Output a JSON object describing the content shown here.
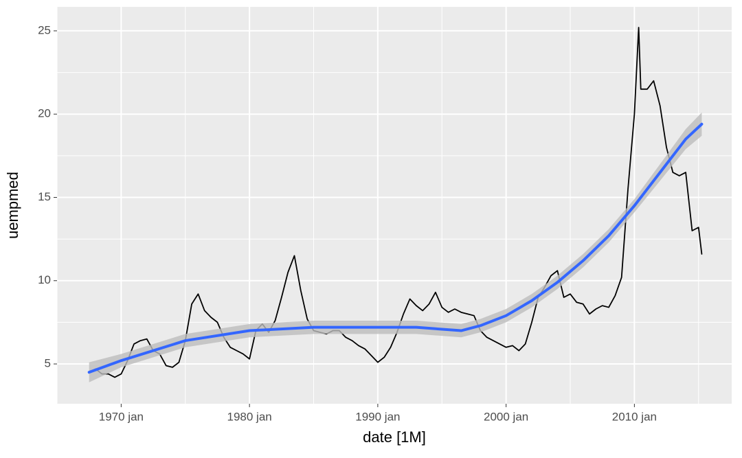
{
  "chart_data": {
    "type": "line",
    "x_label": "date [1M]",
    "y_label": "uempmed",
    "xlim": [
      "1965-01",
      "2017-08"
    ],
    "ylim": [
      2.61,
      26.44
    ],
    "xticks": [
      {
        "value": "1970-01",
        "label": "1970 jan"
      },
      {
        "value": "1980-01",
        "label": "1980 jan"
      },
      {
        "value": "1990-01",
        "label": "1990 jan"
      },
      {
        "value": "2000-01",
        "label": "2000 jan"
      },
      {
        "value": "2010-01",
        "label": "2010 jan"
      }
    ],
    "x_minor_ticks": [
      "1965-01",
      "1975-01",
      "1985-01",
      "1995-01",
      "2005-01",
      "2015-01"
    ],
    "yticks": [
      5,
      10,
      15,
      20,
      25
    ],
    "y_minor_ticks": [
      7.5,
      12.5,
      17.5,
      22.5
    ],
    "grid": true,
    "series": [
      {
        "color": "#000000",
        "x": [
          "1967-07",
          "1968-01",
          "1968-07",
          "1969-01",
          "1969-07",
          "1970-01",
          "1970-07",
          "1971-01",
          "1971-07",
          "1972-01",
          "1972-07",
          "1973-01",
          "1973-07",
          "1974-01",
          "1974-07",
          "1975-01",
          "1975-07",
          "1976-01",
          "1976-07",
          "1977-01",
          "1977-07",
          "1978-01",
          "1978-07",
          "1979-01",
          "1979-07",
          "1980-01",
          "1980-07",
          "1981-01",
          "1981-07",
          "1982-01",
          "1982-07",
          "1983-01",
          "1983-07",
          "1984-01",
          "1984-07",
          "1985-01",
          "1985-07",
          "1986-01",
          "1986-07",
          "1987-01",
          "1987-07",
          "1988-01",
          "1988-07",
          "1989-01",
          "1989-07",
          "1990-01",
          "1990-07",
          "1991-01",
          "1991-07",
          "1992-01",
          "1992-07",
          "1993-01",
          "1993-07",
          "1994-01",
          "1994-07",
          "1995-01",
          "1995-07",
          "1996-01",
          "1996-07",
          "1997-01",
          "1997-07",
          "1998-01",
          "1998-07",
          "1999-01",
          "1999-07",
          "2000-01",
          "2000-07",
          "2001-01",
          "2001-07",
          "2002-01",
          "2002-07",
          "2003-01",
          "2003-07",
          "2004-01",
          "2004-07",
          "2005-01",
          "2005-07",
          "2006-01",
          "2006-07",
          "2007-01",
          "2007-07",
          "2008-01",
          "2008-07",
          "2009-01",
          "2009-07",
          "2010-01",
          "2010-05",
          "2010-07",
          "2011-01",
          "2011-07",
          "2012-01",
          "2012-07",
          "2013-01",
          "2013-07",
          "2014-01",
          "2014-07",
          "2015-01",
          "2015-04"
        ],
        "values": [
          4.5,
          4.7,
          4.4,
          4.4,
          4.2,
          4.4,
          5.2,
          6.2,
          6.4,
          6.5,
          5.8,
          5.6,
          4.9,
          4.8,
          5.1,
          6.4,
          8.6,
          9.2,
          8.2,
          7.8,
          7.5,
          6.6,
          6.0,
          5.8,
          5.6,
          5.3,
          7.0,
          7.4,
          6.9,
          7.6,
          9.0,
          10.5,
          11.5,
          9.4,
          7.7,
          7.0,
          6.9,
          6.8,
          7.0,
          7.0,
          6.6,
          6.4,
          6.1,
          5.9,
          5.5,
          5.1,
          5.4,
          6.0,
          6.9,
          8.0,
          8.9,
          8.5,
          8.2,
          8.6,
          9.3,
          8.4,
          8.1,
          8.3,
          8.1,
          8.0,
          7.9,
          7.0,
          6.6,
          6.4,
          6.2,
          6.0,
          6.1,
          5.8,
          6.2,
          7.5,
          9.0,
          9.6,
          10.3,
          10.6,
          9.0,
          9.2,
          8.7,
          8.6,
          8.0,
          8.3,
          8.5,
          8.4,
          9.1,
          10.2,
          15.5,
          20.0,
          25.2,
          21.5,
          21.5,
          22.0,
          20.5,
          18.0,
          16.5,
          16.3,
          16.5,
          13.0,
          13.2,
          11.6
        ]
      },
      {
        "color": "#3366FF",
        "band_color": "#bdbdbd",
        "x": [
          "1967-07",
          "1970-01",
          "1975-01",
          "1980-01",
          "1985-01",
          "1990-01",
          "1993-01",
          "1996-07",
          "1998-01",
          "2000-01",
          "2002-01",
          "2004-01",
          "2006-01",
          "2008-01",
          "2010-01",
          "2012-01",
          "2014-01",
          "2015-04"
        ],
        "values": [
          4.5,
          5.2,
          6.4,
          7.0,
          7.2,
          7.2,
          7.2,
          7.0,
          7.3,
          7.9,
          8.8,
          9.9,
          11.2,
          12.7,
          14.5,
          16.5,
          18.5,
          19.4
        ],
        "lower": [
          3.9,
          4.8,
          6.0,
          6.6,
          6.8,
          6.8,
          6.8,
          6.6,
          6.9,
          7.5,
          8.4,
          9.5,
          10.8,
          12.3,
          14.1,
          16.0,
          17.9,
          18.7
        ],
        "upper": [
          5.1,
          5.6,
          6.8,
          7.4,
          7.6,
          7.6,
          7.6,
          7.4,
          7.7,
          8.3,
          9.2,
          10.3,
          11.6,
          13.1,
          14.9,
          17.0,
          19.1,
          20.1
        ]
      }
    ]
  }
}
